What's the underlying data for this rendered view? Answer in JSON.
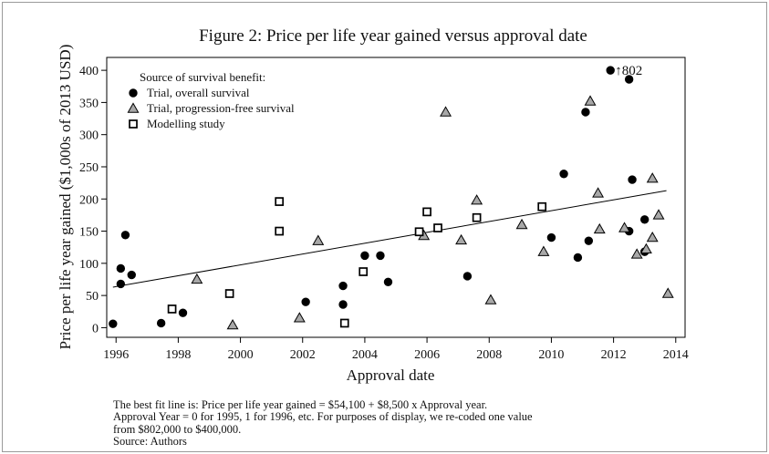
{
  "chart_data": {
    "type": "scatter",
    "title": "Figure 2: Price per life year gained versus approval date",
    "xlabel": "Approval date",
    "ylabel": "Price per life year gained ($1,000s of 2013 USD)",
    "xlim": [
      1995.7,
      2014.3
    ],
    "ylim": [
      -15,
      420
    ],
    "xticks": [
      1996,
      1998,
      2000,
      2002,
      2004,
      2006,
      2008,
      2010,
      2012,
      2014
    ],
    "yticks": [
      0,
      50,
      100,
      150,
      200,
      250,
      300,
      350,
      400
    ],
    "grid": false,
    "legend": {
      "title": "Source of survival benefit:",
      "placement": "top-left",
      "entries": [
        {
          "marker": "circle",
          "label": "Trial, overall survival"
        },
        {
          "marker": "triangle",
          "label": "Trial, progression-free survival"
        },
        {
          "marker": "square",
          "label": "Modelling study"
        }
      ]
    },
    "fit_line": {
      "x": [
        1995.9,
        2013.7
      ],
      "y": [
        63,
        213
      ]
    },
    "annotation": {
      "text": "↑802",
      "x": 2011.9,
      "y": 400
    },
    "series": [
      {
        "name": "Trial, overall survival",
        "marker": "circle",
        "points": [
          [
            1995.9,
            6
          ],
          [
            1996.15,
            92
          ],
          [
            1996.15,
            68
          ],
          [
            1996.3,
            144
          ],
          [
            1996.5,
            82
          ],
          [
            1997.45,
            7
          ],
          [
            1998.15,
            23
          ],
          [
            2002.1,
            40
          ],
          [
            2003.3,
            65
          ],
          [
            2003.3,
            36
          ],
          [
            2004.0,
            112
          ],
          [
            2004.5,
            112
          ],
          [
            2004.75,
            71
          ],
          [
            2007.3,
            80
          ],
          [
            2010.0,
            140
          ],
          [
            2010.4,
            239
          ],
          [
            2010.85,
            109
          ],
          [
            2011.1,
            335
          ],
          [
            2011.2,
            135
          ],
          [
            2011.9,
            400
          ],
          [
            2012.5,
            386
          ],
          [
            2012.5,
            150
          ],
          [
            2012.6,
            230
          ],
          [
            2013.0,
            118
          ],
          [
            2013.0,
            168
          ]
        ]
      },
      {
        "name": "Trial, progression-free survival",
        "marker": "triangle",
        "points": [
          [
            1998.6,
            75
          ],
          [
            1999.75,
            4
          ],
          [
            2001.9,
            15
          ],
          [
            2002.5,
            135
          ],
          [
            2005.9,
            143
          ],
          [
            2006.6,
            335
          ],
          [
            2007.1,
            136
          ],
          [
            2007.6,
            198
          ],
          [
            2008.05,
            43
          ],
          [
            2009.05,
            160
          ],
          [
            2009.75,
            118
          ],
          [
            2011.25,
            352
          ],
          [
            2011.5,
            209
          ],
          [
            2011.55,
            153
          ],
          [
            2012.35,
            155
          ],
          [
            2012.75,
            114
          ],
          [
            2013.05,
            122
          ],
          [
            2013.25,
            232
          ],
          [
            2013.25,
            140
          ],
          [
            2013.45,
            175
          ],
          [
            2013.75,
            53
          ]
        ]
      },
      {
        "name": "Modelling study",
        "marker": "square",
        "points": [
          [
            1997.8,
            29
          ],
          [
            1999.65,
            53
          ],
          [
            2001.25,
            196
          ],
          [
            2001.25,
            150
          ],
          [
            2003.35,
            7
          ],
          [
            2003.95,
            87
          ],
          [
            2005.75,
            149
          ],
          [
            2006.0,
            180
          ],
          [
            2006.35,
            155
          ],
          [
            2007.6,
            171
          ],
          [
            2009.7,
            188
          ]
        ]
      }
    ]
  },
  "notes": {
    "line1": "The best fit line is: Price per life year gained = $54,100 + $8,500 x Approval year.",
    "line2": "Approval Year = 0 for 1995, 1 for 1996, etc. For purposes of display, we re-coded one value",
    "line3": "from $802,000 to $400,000.",
    "line4": "Source: Authors"
  }
}
